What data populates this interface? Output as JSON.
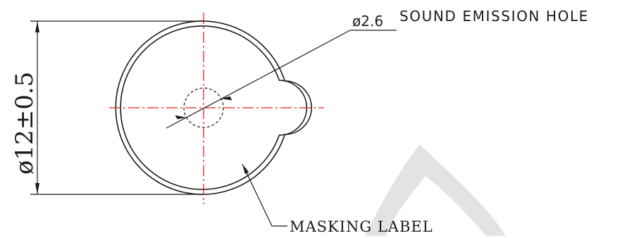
{
  "labels": {
    "hole_diameter": "ø2.6",
    "hole_label": "SOUND EMISSION HOLE",
    "outer_diameter": "ø12±0.5",
    "masking_label": "MASKING LABEL"
  },
  "colors": {
    "lines": "#1a1a1a",
    "centerlines": "#e8202a",
    "watermark": "#e3e3e3",
    "background": "#ffffff"
  }
}
